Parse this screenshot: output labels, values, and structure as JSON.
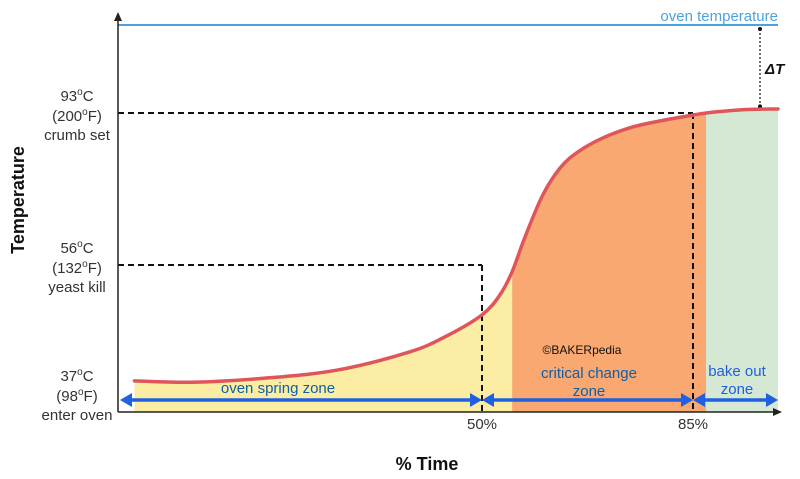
{
  "chart_data": {
    "type": "line",
    "xlabel": "% Time",
    "ylabel": "Temperature",
    "x_ticks": [
      "50%",
      "85%"
    ],
    "y_ticks": [
      {
        "value": 37,
        "lines": [
          "37oC",
          "(98oF)",
          "enter oven"
        ]
      },
      {
        "value": 56,
        "lines": [
          "56oC",
          "(132oF)",
          "yeast kill"
        ]
      },
      {
        "value": 93,
        "lines": [
          "93oC",
          "(200oF)",
          "crumb set"
        ]
      }
    ],
    "xlim": [
      0,
      100
    ],
    "oven_temperature": {
      "label": "oven temperature",
      "value": 115
    },
    "delta_label": "ΔT",
    "copyright": "©BAKERpedia",
    "colors": {
      "curve": "#e0555a",
      "oven_line": "#4aa3e0",
      "arrows": "#1f5fe0",
      "axis": "#222222",
      "guide": "#111111"
    },
    "zones": [
      {
        "name": "oven spring zone",
        "lines": [
          "oven spring zone"
        ],
        "x_start": 0,
        "x_end": 55,
        "color": "#fbeea4",
        "label_color": "#0e5fa8"
      },
      {
        "name": "critical change zone",
        "lines": [
          "critical change",
          "zone"
        ],
        "x_start": 55,
        "x_end": 87.3,
        "color": "#f8a870",
        "label_color": "#0e5fa8"
      },
      {
        "name": "bake out zone",
        "lines": [
          "bake out",
          "zone"
        ],
        "x_start": 87.3,
        "x_end": 100,
        "color": "#d5e8d4",
        "label_color": "#1f5fe0"
      }
    ],
    "series": [
      {
        "x": [
          2,
          10,
          20,
          30,
          40,
          45,
          50,
          53,
          55,
          57,
          60,
          63,
          66,
          70,
          75,
          80,
          85,
          87.3,
          90,
          95,
          100
        ],
        "y": [
          38.8,
          38.6,
          39.2,
          40.4,
          43.1,
          45.4,
          48.6,
          51.6,
          55.0,
          62.3,
          72.8,
          79.7,
          83.6,
          86.9,
          89.6,
          91.2,
          92.5,
          93.0,
          93.4,
          93.9,
          94.0
        ]
      }
    ]
  }
}
